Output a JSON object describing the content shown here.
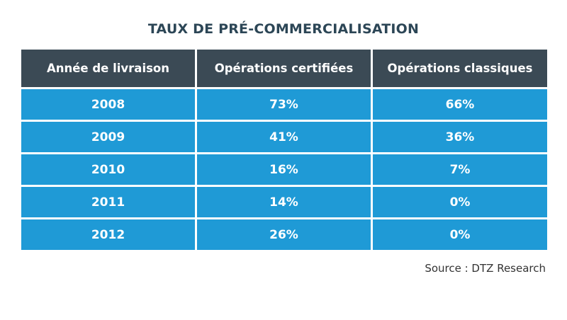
{
  "chart_data": {
    "type": "table",
    "title": "TAUX DE PRÉ-COMMERCIALISATION",
    "columns": [
      "Année de livraison",
      "Opérations certifiées",
      "Opérations classiques"
    ],
    "rows": [
      [
        "2008",
        "73%",
        "66%"
      ],
      [
        "2009",
        "41%",
        "36%"
      ],
      [
        "2010",
        "16%",
        "7%"
      ],
      [
        "2011",
        "14%",
        "0%"
      ],
      [
        "2012",
        "26%",
        "0%"
      ]
    ],
    "source": "Source : DTZ Research"
  },
  "colors": {
    "title": "#2c4656",
    "header_bg": "#3b4a55",
    "cell_bg": "#1f9ad6",
    "text_light": "#ffffff",
    "source_text": "#333333"
  }
}
